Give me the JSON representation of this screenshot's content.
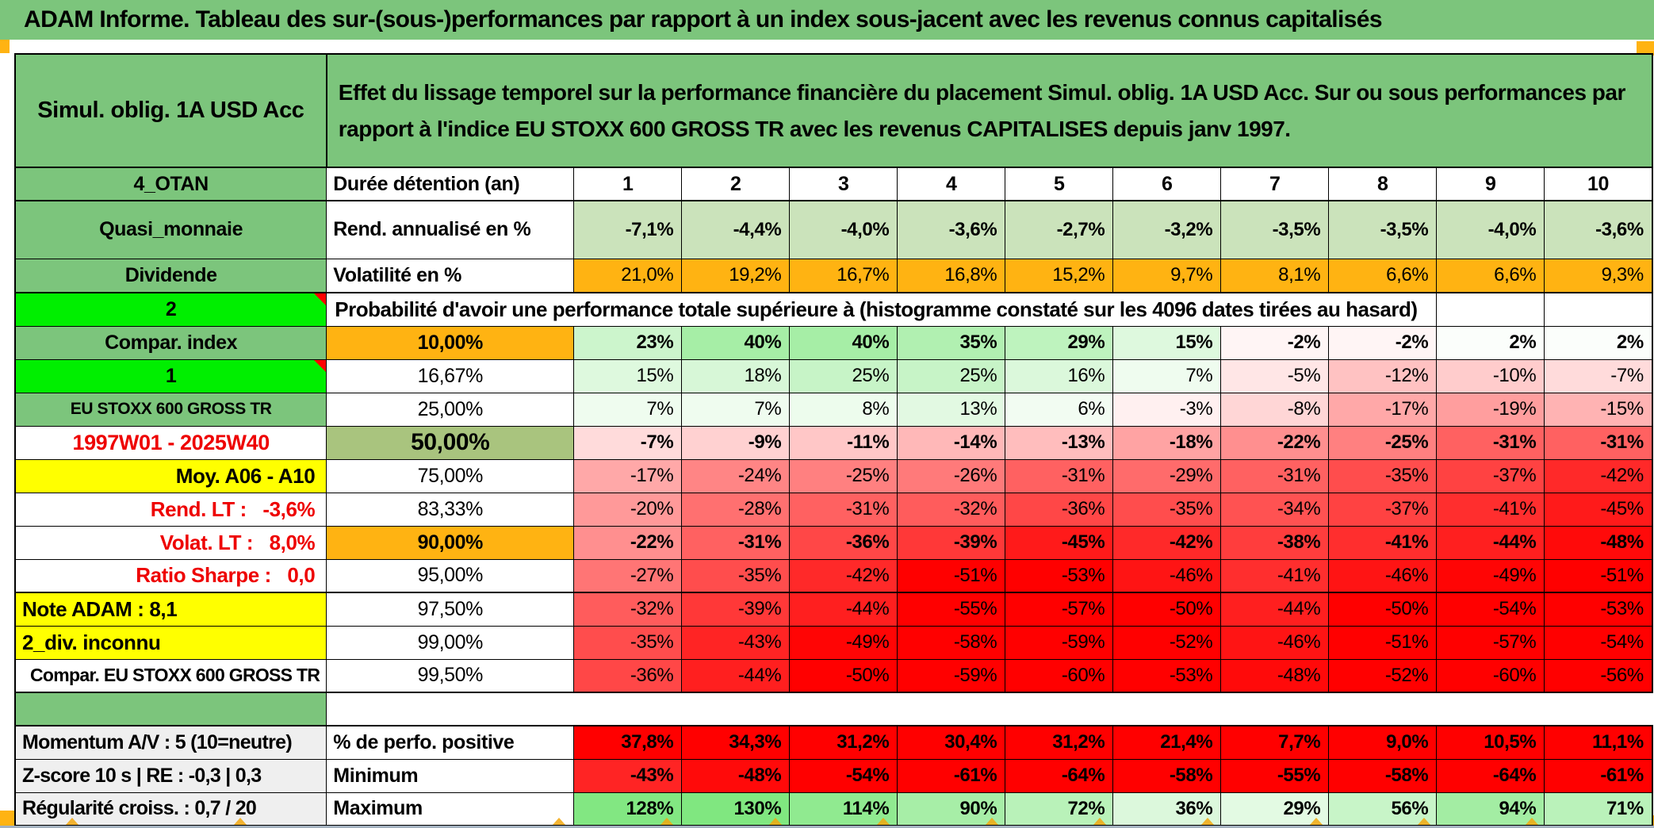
{
  "title": "ADAM Informe. Tableau des sur-(sous-)performances par rapport à un index sous-jacent avec les revenus connus capitalisés",
  "header": {
    "product": "Simul. oblig. 1A USD Acc",
    "description": "Effet du lissage temporel sur la performance financière du placement Simul. oblig. 1A USD Acc. Sur ou sous performances par rapport à l'indice EU STOXX 600 GROSS TR avec les revenus CAPITALISES depuis janv 1997."
  },
  "duree": {
    "a": "4_OTAN",
    "b": "Durée détention (an)",
    "cols": [
      "1",
      "2",
      "3",
      "4",
      "5",
      "6",
      "7",
      "8",
      "9",
      "10"
    ]
  },
  "probability_caption": "Probabilité d'avoir une performance totale supérieure à (histogramme constaté sur les 4096 dates tirées au hasard)",
  "colors": {
    "band_green": "#7cc57c",
    "bright_green": "#00ef00",
    "light_green": "#cbe3bb",
    "sage_green": "#a9c47e",
    "orange": "#ffb312",
    "yellow": "#ffff00",
    "gray": "#efefef",
    "solid_red": "#ff0000",
    "red_text": "#ee0000"
  },
  "rows": [
    {
      "type": "data",
      "a": "Quasi_monnaie",
      "aStyle": "green",
      "b": "Rend. annualisé en %",
      "bStyle": "label",
      "heat": "lightgreen",
      "bold": true,
      "h": "tall",
      "values": [
        "-7,1%",
        "-4,4%",
        "-4,0%",
        "-3,6%",
        "-2,7%",
        "-3,2%",
        "-3,5%",
        "-3,5%",
        "-4,0%",
        "-3,6%"
      ]
    },
    {
      "type": "data",
      "a": "Dividende",
      "aStyle": "green",
      "b": "Volatilité en %",
      "bStyle": "label",
      "heat": "orange",
      "bold": false,
      "h": "vol",
      "values": [
        "21,0%",
        "19,2%",
        "16,7%",
        "16,8%",
        "15,2%",
        "9,7%",
        "8,1%",
        "6,6%",
        "6,6%",
        "9,3%"
      ]
    },
    {
      "type": "prob",
      "a": "2",
      "aStyle": "brightgreen",
      "comment": true,
      "thickTop": true
    },
    {
      "type": "data",
      "a": "Compar. index",
      "aStyle": "green",
      "b": "10,00%",
      "bStyle": "orange",
      "heat": "matrix",
      "bold": true,
      "values": [
        "23%",
        "40%",
        "40%",
        "35%",
        "29%",
        "15%",
        "-2%",
        "-2%",
        "2%",
        "2%"
      ]
    },
    {
      "type": "data",
      "a": "1",
      "aStyle": "brightgreen",
      "comment": true,
      "b": "16,67%",
      "bStyle": "plain",
      "heat": "matrix",
      "bold": false,
      "values": [
        "15%",
        "18%",
        "25%",
        "25%",
        "16%",
        "7%",
        "-5%",
        "-12%",
        "-10%",
        "-7%"
      ]
    },
    {
      "type": "data",
      "a": "EU STOXX 600 GROSS TR",
      "aStyle": "greensmall",
      "b": "25,00%",
      "bStyle": "plain",
      "heat": "matrix",
      "bold": false,
      "values": [
        "7%",
        "7%",
        "8%",
        "13%",
        "6%",
        "-3%",
        "-8%",
        "-17%",
        "-19%",
        "-15%"
      ]
    },
    {
      "type": "data",
      "a": "1997W01 - 2025W40",
      "aStyle": "redcenter",
      "b": "50,00%",
      "bStyle": "sage",
      "heat": "matrix",
      "bold": true,
      "values": [
        "-7%",
        "-9%",
        "-11%",
        "-14%",
        "-13%",
        "-18%",
        "-22%",
        "-25%",
        "-31%",
        "-31%"
      ]
    },
    {
      "type": "data",
      "a": "Moy. A06 - A10",
      "aStyle": "yellowright",
      "b": "75,00%",
      "bStyle": "plain",
      "heat": "matrix",
      "bold": false,
      "values": [
        "-17%",
        "-24%",
        "-25%",
        "-26%",
        "-31%",
        "-29%",
        "-31%",
        "-35%",
        "-37%",
        "-42%"
      ]
    },
    {
      "type": "data",
      "a": "Rend. LT :   -3,6%",
      "aStyle": "redright",
      "b": "83,33%",
      "bStyle": "plain",
      "heat": "matrix",
      "bold": false,
      "values": [
        "-20%",
        "-28%",
        "-31%",
        "-32%",
        "-36%",
        "-35%",
        "-34%",
        "-37%",
        "-41%",
        "-45%"
      ]
    },
    {
      "type": "data",
      "a": "Volat. LT :   8,0%",
      "aStyle": "redright",
      "b": "90,00%",
      "bStyle": "orange",
      "heat": "matrix",
      "bold": true,
      "values": [
        "-22%",
        "-31%",
        "-36%",
        "-39%",
        "-45%",
        "-42%",
        "-38%",
        "-41%",
        "-44%",
        "-48%"
      ]
    },
    {
      "type": "data",
      "a": "Ratio Sharpe :   0,0",
      "aStyle": "redright",
      "b": "95,00%",
      "bStyle": "plain",
      "heat": "matrix",
      "bold": false,
      "values": [
        "-27%",
        "-35%",
        "-42%",
        "-51%",
        "-53%",
        "-46%",
        "-41%",
        "-46%",
        "-49%",
        "-51%"
      ]
    },
    {
      "type": "data",
      "a": "Note ADAM : 8,1",
      "aStyle": "yellowleft",
      "b": "97,50%",
      "bStyle": "plain",
      "heat": "matrix",
      "bold": false,
      "thickTop": true,
      "values": [
        "-32%",
        "-39%",
        "-44%",
        "-55%",
        "-57%",
        "-50%",
        "-44%",
        "-50%",
        "-54%",
        "-53%"
      ]
    },
    {
      "type": "data",
      "a": "2_div. inconnu",
      "aStyle": "yellowleft",
      "b": "99,00%",
      "bStyle": "plain",
      "heat": "matrix",
      "bold": false,
      "values": [
        "-35%",
        "-43%",
        "-49%",
        "-58%",
        "-59%",
        "-52%",
        "-46%",
        "-51%",
        "-57%",
        "-54%"
      ]
    },
    {
      "type": "data",
      "a": "Compar. EU STOXX 600 GROSS TR",
      "aStyle": "whiteleft",
      "b": "99,50%",
      "bStyle": "plain",
      "heat": "matrix",
      "bold": false,
      "thickBottom": true,
      "values": [
        "-36%",
        "-44%",
        "-50%",
        "-59%",
        "-60%",
        "-53%",
        "-48%",
        "-52%",
        "-60%",
        "-56%"
      ]
    },
    {
      "type": "spacer"
    },
    {
      "type": "data",
      "a": "Momentum A/V : 5 (10=neutre)",
      "aStyle": "grayleft",
      "b": "% de perfo. positive",
      "bStyle": "label",
      "heat": "solidred",
      "bold": true,
      "thickTop": true,
      "values": [
        "37,8%",
        "34,3%",
        "31,2%",
        "30,4%",
        "31,2%",
        "21,4%",
        "7,7%",
        "9,0%",
        "10,5%",
        "11,1%"
      ]
    },
    {
      "type": "data",
      "a": "Z-score 10 s | RE : -0,3 | 0,3",
      "aStyle": "grayleft",
      "b": "Minimum",
      "bStyle": "label",
      "heat": "min",
      "bold": true,
      "values": [
        "-43%",
        "-48%",
        "-54%",
        "-61%",
        "-64%",
        "-58%",
        "-55%",
        "-58%",
        "-64%",
        "-61%"
      ]
    },
    {
      "type": "data",
      "a": "Régularité croiss. : 0,7 / 20",
      "aStyle": "grayleft",
      "b": "Maximum",
      "bStyle": "label",
      "heat": "max",
      "bold": true,
      "thickBottom": true,
      "values": [
        "128%",
        "130%",
        "114%",
        "90%",
        "72%",
        "36%",
        "29%",
        "56%",
        "94%",
        "71%"
      ]
    }
  ]
}
